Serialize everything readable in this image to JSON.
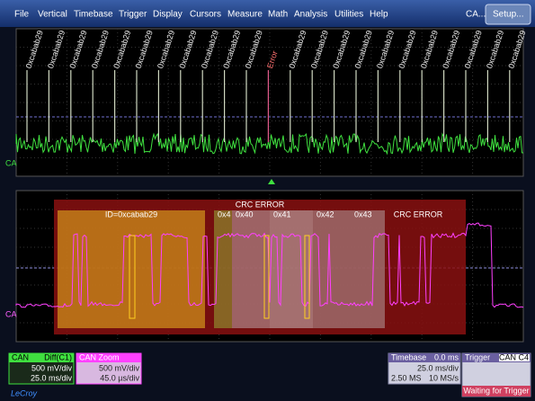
{
  "menu": [
    "File",
    "Vertical",
    "Timebase",
    "Trigger",
    "Display",
    "Cursors",
    "Measure",
    "Math",
    "Analysis",
    "Utilities",
    "Help",
    "CA...",
    "Setup..."
  ],
  "top_panel": {
    "channel": "CA",
    "frame_labels": [
      "0xcabab29",
      "0xcabab29",
      "0xcabab29",
      "0xcabab29",
      "0xcabab29",
      "0xcabab29",
      "0xcabab29",
      "0xcabab29",
      "0xcabab29",
      "0xcabab29",
      "0xcabab29",
      "Error",
      "0xcabab29",
      "0xcabab29",
      "0xcabab29",
      "0xcabab29",
      "0xcabab29",
      "0xcabab29",
      "0xcabab29",
      "0xcabab29",
      "0xcabab29",
      "0xcabab29",
      "0xcabab29"
    ]
  },
  "zoom_panel": {
    "channel": "CA",
    "title": "CRC ERROR",
    "fields": [
      "ID=0xcabab29",
      "0x4",
      "0x40",
      "0x41",
      "0x42",
      "0x43",
      "CRC ERROR"
    ]
  },
  "can": {
    "name": "CAN",
    "source": "Diff(C1)",
    "vdiv": "500 mV/div",
    "tdiv": "25.0 ms/div"
  },
  "zoom": {
    "name": "CAN Zoom",
    "vdiv": "500 mV/div",
    "tdiv": "45.0 µs/div"
  },
  "timebase": {
    "label": "Timebase",
    "delay": "0.0 ms",
    "tdiv": "25.0 ms/div",
    "samples": "2.50 MS",
    "rate": "10 MS/s"
  },
  "trigger": {
    "label": "Trigger",
    "source": "CAN C4",
    "status": "Waiting for Trigger"
  },
  "brand": "LeCroy"
}
